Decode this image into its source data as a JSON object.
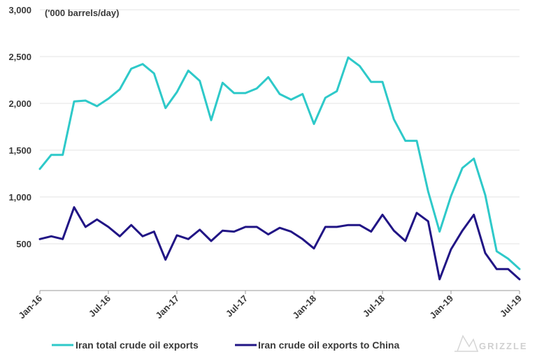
{
  "chart_data": {
    "type": "line",
    "title": "",
    "unit_label": "('000 barrels/day)",
    "xlabel": "",
    "ylabel": "",
    "ylim": [
      0,
      3000
    ],
    "yticks": [
      500,
      1000,
      1500,
      2000,
      2500,
      3000
    ],
    "ytick_labels": [
      "500",
      "1,000",
      "1,500",
      "2,000",
      "2,500",
      "3,000"
    ],
    "grid": true,
    "legend_position": "bottom",
    "x_labels": [
      {
        "index": 0,
        "label": "Jan-16"
      },
      {
        "index": 6,
        "label": "Jul-16"
      },
      {
        "index": 12,
        "label": "Jan-17"
      },
      {
        "index": 18,
        "label": "Jul-17"
      },
      {
        "index": 24,
        "label": "Jan-18"
      },
      {
        "index": 30,
        "label": "Jul-18"
      },
      {
        "index": 36,
        "label": "Jan-19"
      },
      {
        "index": 42,
        "label": "Jul-19"
      }
    ],
    "series": [
      {
        "name": "Iran total crude oil exports",
        "color": "#2ec9c9",
        "values": [
          1300,
          1450,
          1450,
          2020,
          2030,
          1970,
          2050,
          2150,
          2370,
          2420,
          2320,
          1950,
          2120,
          2350,
          2240,
          1820,
          2220,
          2110,
          2110,
          2160,
          2280,
          2100,
          2040,
          2100,
          1780,
          2060,
          2130,
          2490,
          2400,
          2230,
          2230,
          1830,
          1600,
          1600,
          1060,
          630,
          1010,
          1310,
          1410,
          1020,
          420,
          340,
          230
        ]
      },
      {
        "name": "Iran crude oil exports to China",
        "color": "#211585",
        "values": [
          550,
          580,
          550,
          890,
          680,
          760,
          680,
          580,
          700,
          580,
          630,
          330,
          590,
          550,
          650,
          530,
          640,
          630,
          680,
          680,
          600,
          670,
          630,
          550,
          450,
          680,
          680,
          700,
          700,
          630,
          810,
          640,
          530,
          830,
          740,
          120,
          440,
          640,
          810,
          400,
          230,
          230,
          120
        ]
      }
    ]
  },
  "watermark": {
    "text": "GRIZZLE"
  }
}
